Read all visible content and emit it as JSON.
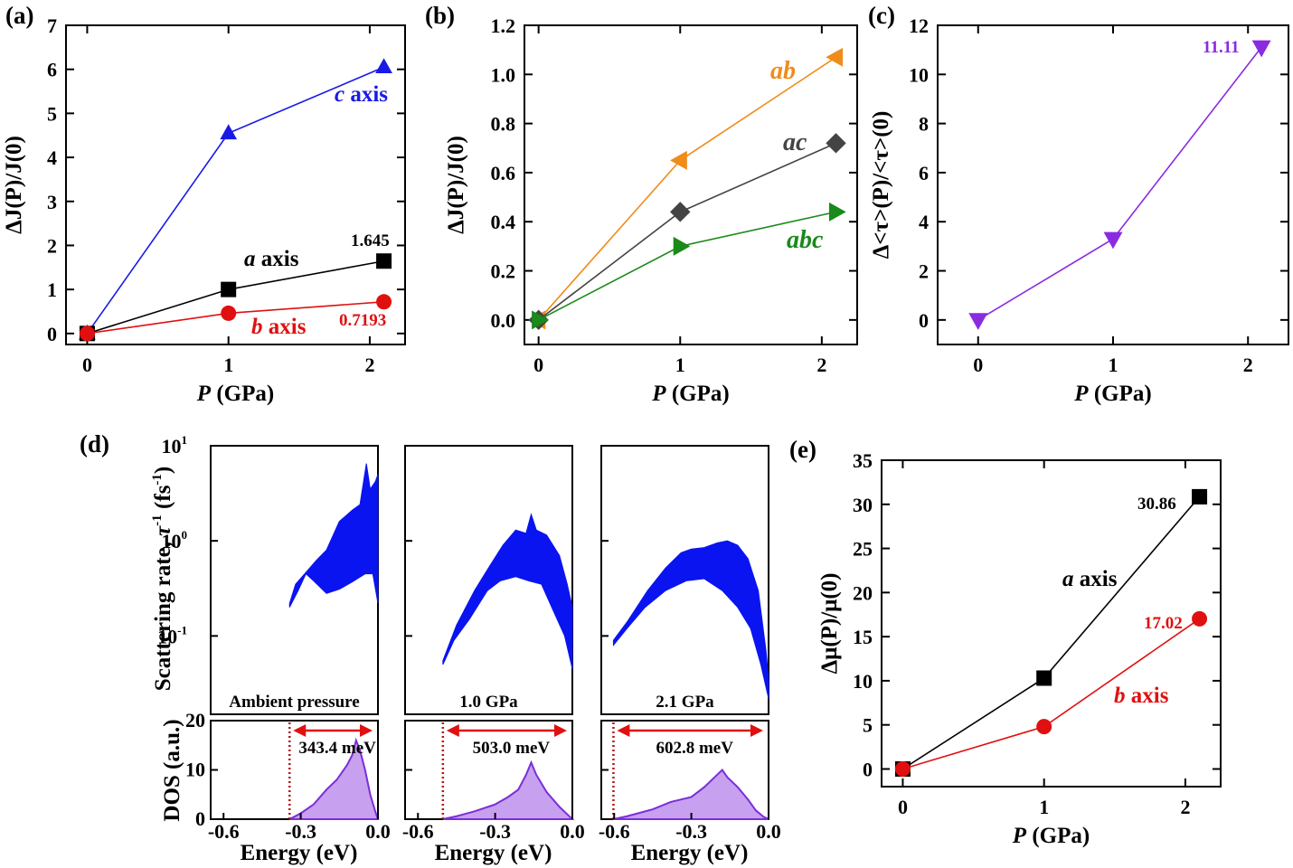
{
  "chart_data": [
    {
      "panel": "(a)",
      "type": "line",
      "xlabel_var": "P",
      "xlabel_unit": " (GPa)",
      "ylabel": "ΔJ(P)/J(0)",
      "xlim": [
        -0.15,
        2.25
      ],
      "ylim": [
        -0.25,
        7
      ],
      "xticks": [
        "0",
        "1",
        "2"
      ],
      "yticks": [
        "0",
        "1",
        "2",
        "3",
        "4",
        "5",
        "6",
        "7"
      ],
      "series": [
        {
          "name": "c axis",
          "color": "#1a1ae6",
          "marker": "triangle-up",
          "x": [
            0,
            1,
            2.1
          ],
          "y": [
            0,
            4.55,
            6.05
          ]
        },
        {
          "name": "a axis",
          "color": "#000000",
          "marker": "square",
          "x": [
            0,
            1,
            2.1
          ],
          "y": [
            0,
            1.0,
            1.645
          ]
        },
        {
          "name": "b axis",
          "color": "#e01010",
          "marker": "circle",
          "x": [
            0,
            1,
            2.1
          ],
          "y": [
            0,
            0.46,
            0.7193
          ]
        }
      ],
      "annotations": [
        {
          "text": "1.645",
          "color": "#000000"
        },
        {
          "text": "0.7193",
          "color": "#e01010"
        }
      ]
    },
    {
      "panel": "(b)",
      "type": "line",
      "xlabel_var": "P",
      "xlabel_unit": " (GPa)",
      "ylabel": "ΔJ(P)/J(0)",
      "xlim": [
        -0.1,
        2.25
      ],
      "ylim": [
        -0.1,
        1.2
      ],
      "xticks": [
        "0",
        "1",
        "2"
      ],
      "yticks": [
        "0.0",
        "0.2",
        "0.4",
        "0.6",
        "0.8",
        "1.0",
        "1.2"
      ],
      "series": [
        {
          "name": "ab",
          "color": "#f08c1a",
          "marker": "triangle-left",
          "x": [
            0,
            1,
            2.1
          ],
          "y": [
            0,
            0.65,
            1.07
          ]
        },
        {
          "name": "ac",
          "color": "#444444",
          "marker": "diamond",
          "x": [
            0,
            1,
            2.1
          ],
          "y": [
            0,
            0.44,
            0.72
          ]
        },
        {
          "name": "abc",
          "color": "#1a8a1a",
          "marker": "triangle-right",
          "x": [
            0,
            1,
            2.1
          ],
          "y": [
            0,
            0.3,
            0.44
          ]
        }
      ]
    },
    {
      "panel": "(c)",
      "type": "line",
      "xlabel_var": "P",
      "xlabel_unit": " (GPa)",
      "ylabel": "Δ<τ>(P)/<τ>(0)",
      "xlim": [
        -0.3,
        2.3
      ],
      "ylim": [
        -1,
        12
      ],
      "xticks": [
        "0",
        "1",
        "2"
      ],
      "yticks": [
        "0",
        "2",
        "4",
        "6",
        "8",
        "10",
        "12"
      ],
      "series": [
        {
          "name": "",
          "color": "#8a2be2",
          "marker": "triangle-down",
          "x": [
            0,
            1,
            2.1
          ],
          "y": [
            0,
            3.3,
            11.11
          ]
        }
      ],
      "annotations": [
        {
          "text": "11.11",
          "color": "#8a2be2"
        }
      ]
    },
    {
      "panel": "(d)",
      "type": "area",
      "ylabel_top": "Scattering rate, τ⁻¹ (fs⁻¹)",
      "ylabel_bottom": "DOS (a.u.)",
      "xlabel": "Energy (eV)",
      "xlim": [
        -0.65,
        0.0
      ],
      "top_yscale": "log",
      "top_ylim": [
        0.015,
        10
      ],
      "top_yticks": [
        "10⁻¹",
        "10⁰",
        "10¹"
      ],
      "bottom_ylim": [
        0,
        20
      ],
      "bottom_yticks": [
        "0",
        "10",
        "20"
      ],
      "xticks": [
        "-0.6",
        "-0.3",
        "0.0"
      ],
      "subpanels": [
        {
          "label": "Ambient pressure",
          "gap_label": "343.4 meV",
          "edge": -0.3434
        },
        {
          "label": "1.0 GPa",
          "gap_label": "503.0 meV",
          "edge": -0.503
        },
        {
          "label": "2.1 GPa",
          "gap_label": "602.8 meV",
          "edge": -0.6028
        }
      ]
    },
    {
      "panel": "(e)",
      "type": "line",
      "xlabel_var": "P",
      "xlabel_unit": " (GPa)",
      "ylabel": "Δμ(P)/μ(0)",
      "xlim": [
        -0.15,
        2.25
      ],
      "ylim": [
        -2,
        35
      ],
      "xticks": [
        "0",
        "1",
        "2"
      ],
      "yticks": [
        "0",
        "5",
        "10",
        "15",
        "20",
        "25",
        "30",
        "35"
      ],
      "series": [
        {
          "name": "a axis",
          "color": "#000000",
          "marker": "square",
          "x": [
            0,
            1,
            2.1
          ],
          "y": [
            0,
            10.3,
            30.86
          ]
        },
        {
          "name": "b axis",
          "color": "#e01010",
          "marker": "circle",
          "x": [
            0,
            1,
            2.1
          ],
          "y": [
            0,
            4.8,
            17.02
          ]
        }
      ],
      "annotations": [
        {
          "text": "30.86",
          "color": "#000000"
        },
        {
          "text": "17.02",
          "color": "#e01010"
        }
      ]
    }
  ]
}
